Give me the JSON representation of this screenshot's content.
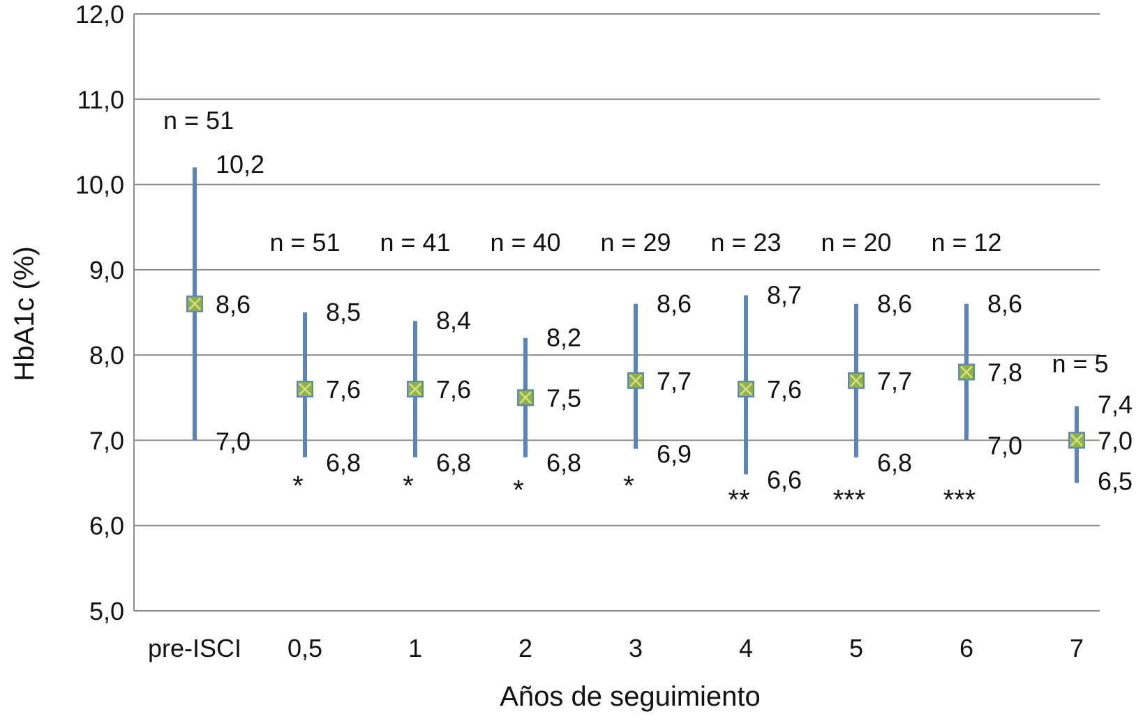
{
  "chart_data": {
    "type": "scatter",
    "title": "",
    "xlabel": "Años de seguimiento",
    "ylabel": "HbA1c (%)",
    "ylim": [
      5.0,
      12.0
    ],
    "yticks": [
      "5,0",
      "6,0",
      "7,0",
      "8,0",
      "9,0",
      "10,0",
      "11,0",
      "12,0"
    ],
    "grid": true,
    "legend": "none",
    "colors": {
      "bar": "#5b84b9",
      "marker_fill": "#8db14c",
      "marker_cross": "#d9e27a",
      "grid": "#8c8c8c"
    },
    "categories": [
      "pre-ISCI",
      "0,5",
      "1",
      "2",
      "3",
      "4",
      "5",
      "6",
      "7"
    ],
    "points": [
      {
        "category": "pre-ISCI",
        "n_label": "n = 51",
        "mean": 8.6,
        "max": 10.2,
        "min": 7.0,
        "mean_label": "8,6",
        "max_label": "10,2",
        "min_label": "7,0",
        "sig": ""
      },
      {
        "category": "0,5",
        "n_label": "n = 51",
        "mean": 7.6,
        "max": 8.5,
        "min": 6.8,
        "mean_label": "7,6",
        "max_label": "8,5",
        "min_label": "6,8",
        "sig": "*"
      },
      {
        "category": "1",
        "n_label": "n = 41",
        "mean": 7.6,
        "max": 8.4,
        "min": 6.8,
        "mean_label": "7,6",
        "max_label": "8,4",
        "min_label": "6,8",
        "sig": "*"
      },
      {
        "category": "2",
        "n_label": "n = 40",
        "mean": 7.5,
        "max": 8.2,
        "min": 6.8,
        "mean_label": "7,5",
        "max_label": "8,2",
        "min_label": "6,8",
        "sig": "*"
      },
      {
        "category": "3",
        "n_label": "n = 29",
        "mean": 7.7,
        "max": 8.6,
        "min": 6.9,
        "mean_label": "7,7",
        "max_label": "8,6",
        "min_label": "6,9",
        "sig": "*"
      },
      {
        "category": "4",
        "n_label": "n = 23",
        "mean": 7.6,
        "max": 8.7,
        "min": 6.6,
        "mean_label": "7,6",
        "max_label": "8,7",
        "min_label": "6,6",
        "sig": "**"
      },
      {
        "category": "5",
        "n_label": "n = 20",
        "mean": 7.7,
        "max": 8.6,
        "min": 6.8,
        "mean_label": "7,7",
        "max_label": "8,6",
        "min_label": "6,8",
        "sig": "***"
      },
      {
        "category": "6",
        "n_label": "n = 12",
        "mean": 7.8,
        "max": 8.6,
        "min": 7.0,
        "mean_label": "7,8",
        "max_label": "8,6",
        "min_label": "7,0",
        "sig": "***"
      },
      {
        "category": "7",
        "n_label": "n = 5",
        "mean": 7.0,
        "max": 7.4,
        "min": 6.5,
        "mean_label": "7,0",
        "max_label": "7,4",
        "min_label": "6,5",
        "sig": ""
      }
    ]
  }
}
